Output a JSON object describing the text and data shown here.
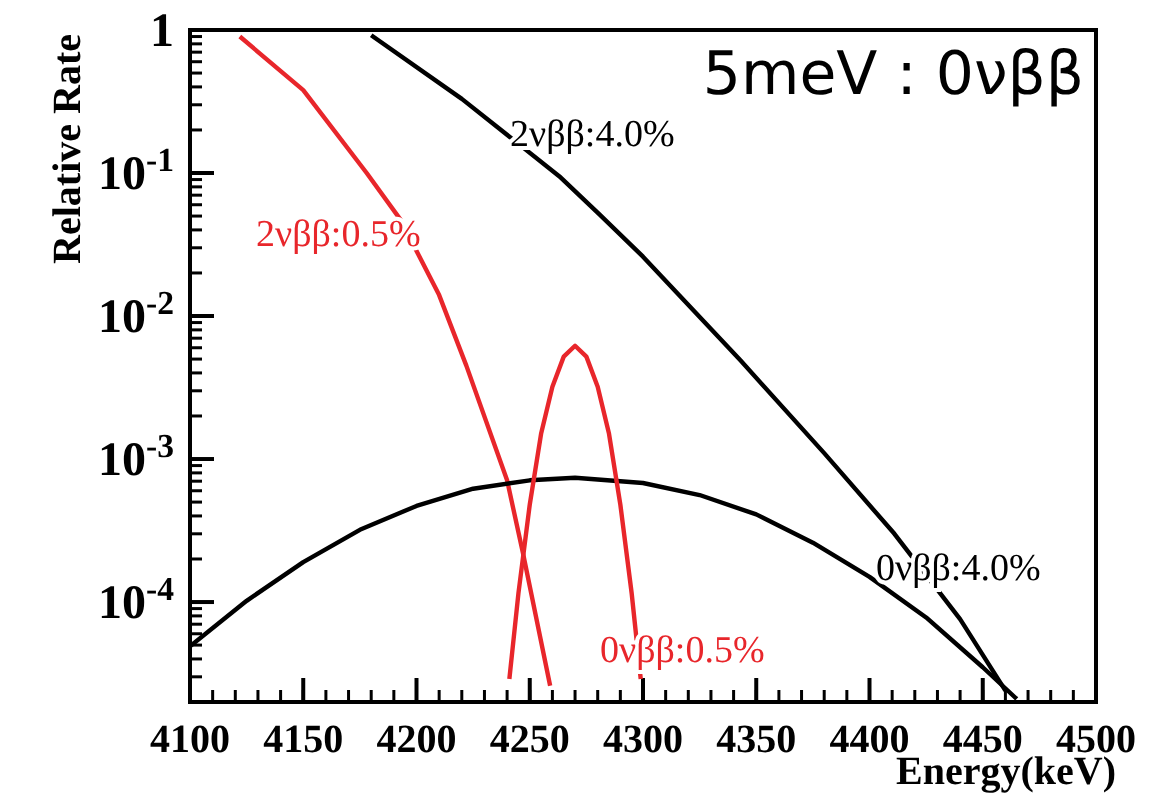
{
  "chart_data": {
    "type": "line",
    "xlabel": "Energy(keV)",
    "ylabel": "Relative Rate",
    "log": "y",
    "grid": false,
    "marker": "none",
    "line_style": "solid",
    "xlim": [
      4100,
      4500
    ],
    "xticks": [
      4100,
      4150,
      4200,
      4250,
      4300,
      4350,
      4400,
      4450,
      4500
    ],
    "ylim": [
      2e-05,
      1
    ],
    "yticks": [
      {
        "value": 0.0001,
        "label": "10$^{-4}$"
      },
      {
        "value": 0.001,
        "label": "10$^{-3}$"
      },
      {
        "value": 0.01,
        "label": "10$^{-2}$"
      },
      {
        "value": 0.1,
        "label": "10$^{-1}$"
      },
      1
    ],
    "annotations": [
      "5meV : 0νββ"
    ],
    "series": [
      {
        "name": "2νββ:4.0%",
        "color": "#000000",
        "x": [
          4180,
          4220,
          4263,
          4281,
          4300,
          4343,
          4380,
          4411,
          4440,
          4460
        ],
        "values": [
          0.92,
          0.33,
          0.095,
          0.051,
          0.026,
          0.0049,
          0.0011,
          0.0003,
          7.6e-05,
          2.4e-05
        ]
      },
      {
        "name": "2νββ:0.5%",
        "color": "#e8262b",
        "x": [
          4122,
          4150,
          4178,
          4193,
          4210,
          4222,
          4240,
          4247,
          4259
        ],
        "values": [
          0.9,
          0.38,
          0.1,
          0.047,
          0.014,
          0.0045,
          0.00071,
          0.00022,
          2.6e-05
        ]
      },
      {
        "name": "0νββ:4.0%",
        "color": "#000000",
        "x": [
          4100,
          4125,
          4150,
          4175,
          4200,
          4225,
          4250,
          4270,
          4300,
          4325,
          4350,
          4375,
          4400,
          4425,
          4450,
          4465
        ],
        "values": [
          4.9e-05,
          0.000102,
          0.00019,
          0.00032,
          0.00047,
          0.00062,
          0.00071,
          0.00074,
          0.00068,
          0.00056,
          0.00041,
          0.00026,
          0.00015,
          7.8e-05,
          3.5e-05,
          2.1e-05
        ]
      },
      {
        "name": "0νββ:0.5%",
        "color": "#e8262b",
        "x": [
          4241,
          4245,
          4250,
          4255,
          4260,
          4265,
          4270,
          4275,
          4280,
          4285,
          4290,
          4295,
          4299
        ],
        "values": [
          2.9e-05,
          0.000115,
          0.00048,
          0.0015,
          0.0032,
          0.0052,
          0.0062,
          0.0052,
          0.0032,
          0.0015,
          0.00048,
          0.000115,
          2.9e-05
        ]
      }
    ]
  }
}
